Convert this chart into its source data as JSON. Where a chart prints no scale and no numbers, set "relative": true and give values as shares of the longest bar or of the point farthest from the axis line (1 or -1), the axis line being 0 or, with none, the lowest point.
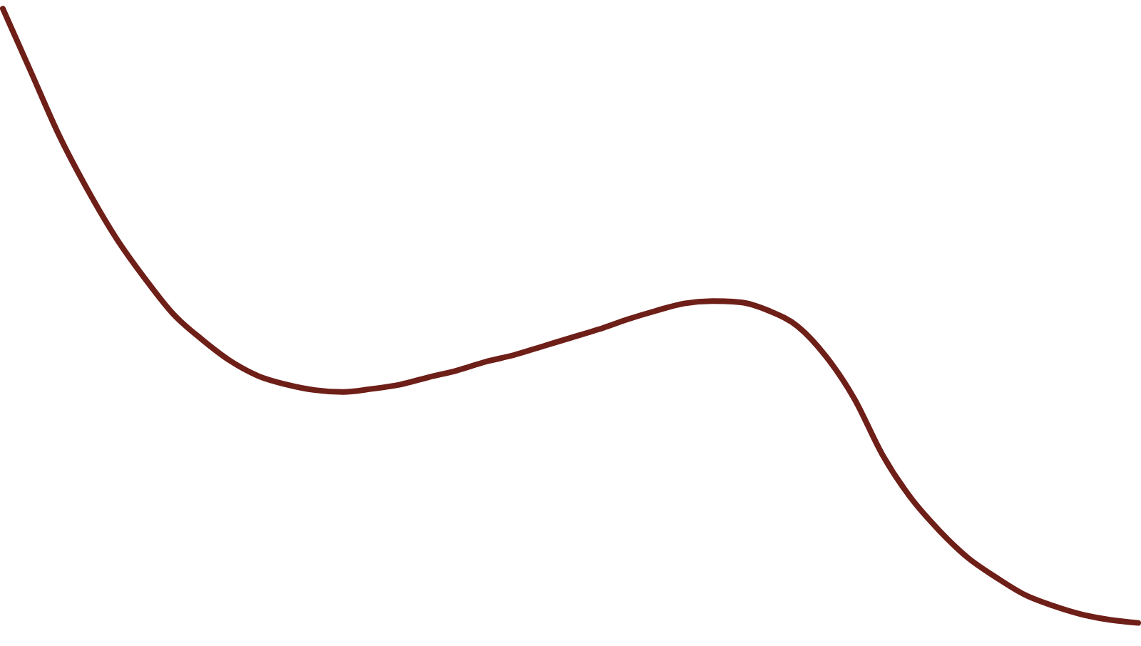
{
  "chart_data": {
    "type": "line",
    "relative": true,
    "grid": false,
    "tick_labels": false,
    "marker": "none",
    "line_style": "solid",
    "categories": [
      null,
      null,
      null,
      null,
      null,
      null,
      null,
      null,
      null,
      null,
      null,
      null,
      null,
      null,
      null,
      null,
      null,
      null,
      null,
      null,
      null,
      null,
      null,
      null,
      null,
      null,
      null,
      null,
      null,
      null,
      null,
      null,
      null,
      null,
      null,
      null,
      null,
      null,
      null,
      null,
      null
    ],
    "series": [
      {
        "color": "#6e1f17",
        "values": [
          1.0,
          0.896,
          0.792,
          0.704,
          0.626,
          0.561,
          0.503,
          0.462,
          0.427,
          0.402,
          0.388,
          0.379,
          0.376,
          0.381,
          0.388,
          0.4,
          0.411,
          0.425,
          0.436,
          0.45,
          0.464,
          0.478,
          0.494,
          0.508,
          0.52,
          0.524,
          0.522,
          0.508,
          0.483,
          0.434,
          0.365,
          0.273,
          0.203,
          0.15,
          0.106,
          0.074,
          0.046,
          0.028,
          0.014,
          0.005,
          0.0
        ]
      }
    ]
  }
}
